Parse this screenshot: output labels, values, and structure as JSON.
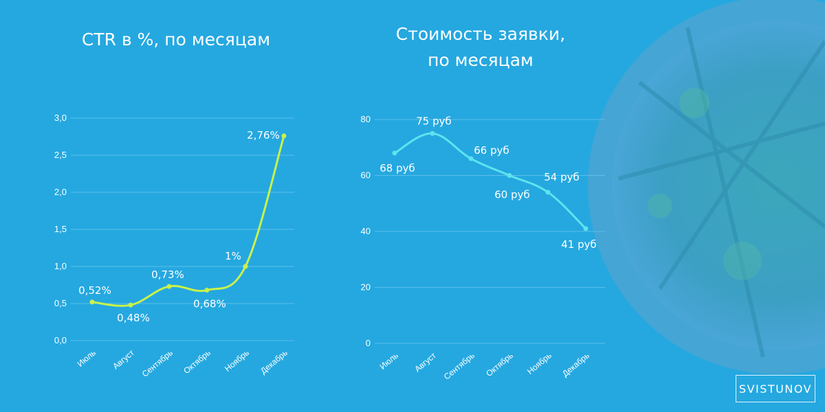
{
  "brand": "SVISTUNOV",
  "colors": {
    "background": "#25a8e0",
    "ctr_line": "#c9f24a",
    "cost_line": "#5fe3ee",
    "grid": "#5cc0ea"
  },
  "decor": {
    "right_edge_image": "pizza-photo"
  },
  "chart_data": [
    {
      "type": "line",
      "title": "CTR в %, по месяцам",
      "categories": [
        "Июль",
        "Август",
        "Сентябрь",
        "Октябрь",
        "Ноябрь",
        "Декабрь"
      ],
      "values": [
        0.52,
        0.48,
        0.73,
        0.68,
        1.0,
        2.76
      ],
      "data_labels": [
        "0,52%",
        "0,48%",
        "0,73%",
        "0,68%",
        "1%",
        "2,76%"
      ],
      "y_ticks": [
        "0,0",
        "0,5",
        "1,0",
        "1,5",
        "2,0",
        "2,5",
        "3,0"
      ],
      "ylim": [
        0,
        3
      ],
      "grid": true,
      "smooth": true
    },
    {
      "type": "line",
      "title": [
        "Стоимость заявки,",
        "по месяцам"
      ],
      "categories": [
        "Июль",
        "Август",
        "Сентябрь",
        "Октябрь",
        "Ноябрь",
        "Декабрь"
      ],
      "values": [
        68,
        75,
        66,
        60,
        54,
        41
      ],
      "data_labels": [
        "68 руб",
        "75 руб",
        "66 руб",
        "60 руб",
        "54 руб",
        "41 руб"
      ],
      "y_ticks": [
        "0",
        "20",
        "40",
        "60",
        "80"
      ],
      "ylim": [
        0,
        80
      ],
      "grid": true,
      "smooth": true
    }
  ]
}
